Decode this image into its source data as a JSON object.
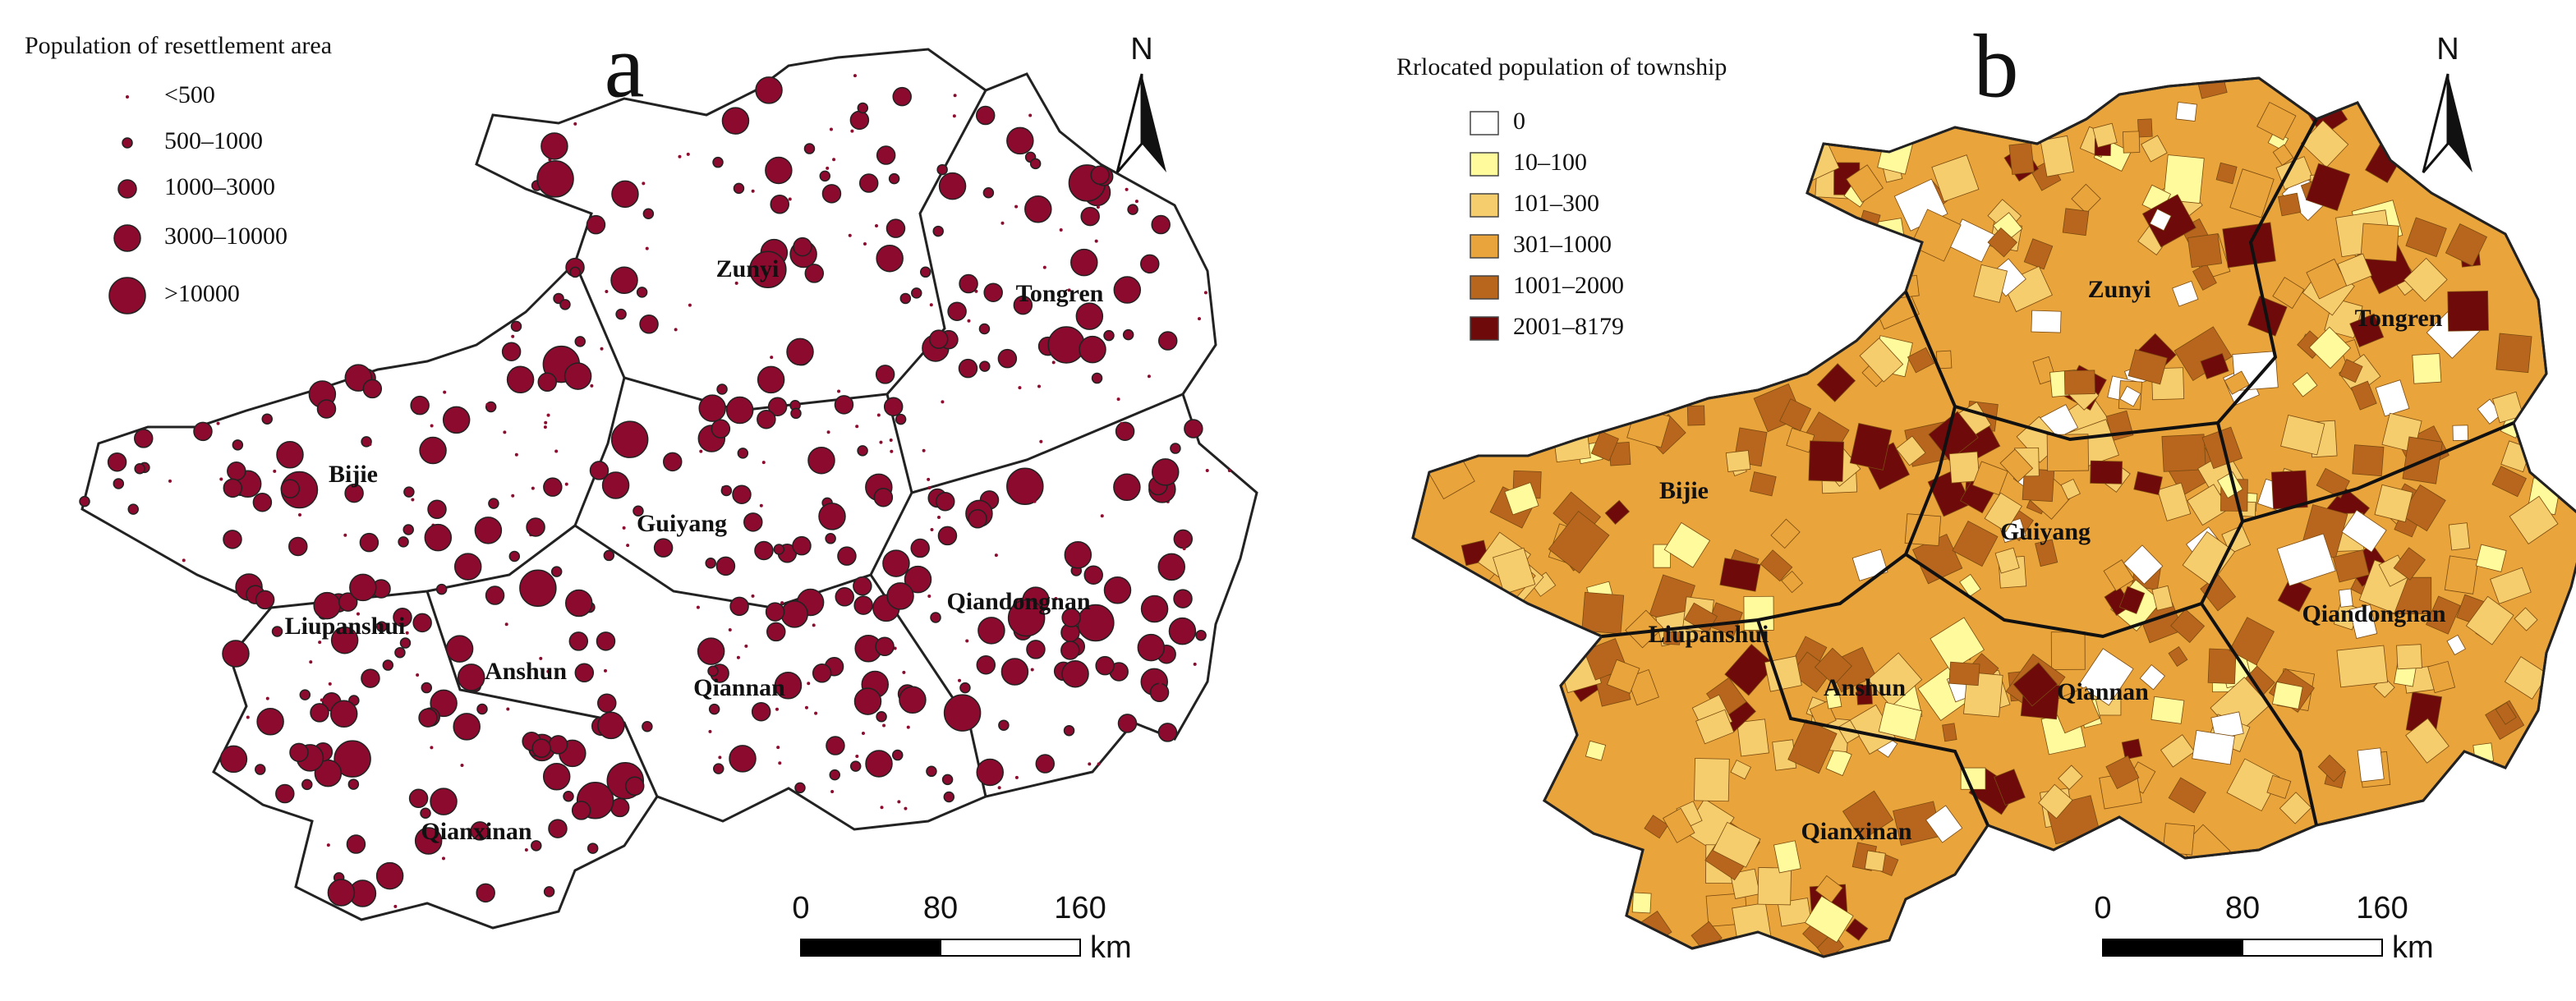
{
  "panels": [
    {
      "letter": "a",
      "legend_title": "Population of resettlement area",
      "legend_items": [
        "<500",
        "500–1000",
        "1000–3000",
        "3000–10000",
        ">10000"
      ],
      "legend_color": "#8b0a2e",
      "north": "N",
      "regions": [
        "Zunyi",
        "Tongren",
        "Bijie",
        "Guiyang",
        "Qiandongnan",
        "Liupanshui",
        "Anshun",
        "Qiannan",
        "Qianxinan"
      ],
      "scale_ticks": [
        0,
        80,
        160
      ],
      "scale_unit": "km"
    },
    {
      "letter": "b",
      "legend_title": "Rrlocated population of township",
      "legend_items": [
        "0",
        "10–100",
        "101–300",
        "301–1000",
        "1001–2000",
        "2001–8179"
      ],
      "legend_colors": [
        "#ffffff",
        "#fffb9c",
        "#f6cd6c",
        "#e9a43b",
        "#b8661d",
        "#6e0a0a"
      ],
      "north": "N",
      "regions": [
        "Zunyi",
        "Tongren",
        "Bijie",
        "Guiyang",
        "Qiandongnan",
        "Liupanshui",
        "Anshun",
        "Qiannan",
        "Qianxinan"
      ],
      "scale_ticks": [
        0,
        80,
        160
      ],
      "scale_unit": "km"
    }
  ]
}
